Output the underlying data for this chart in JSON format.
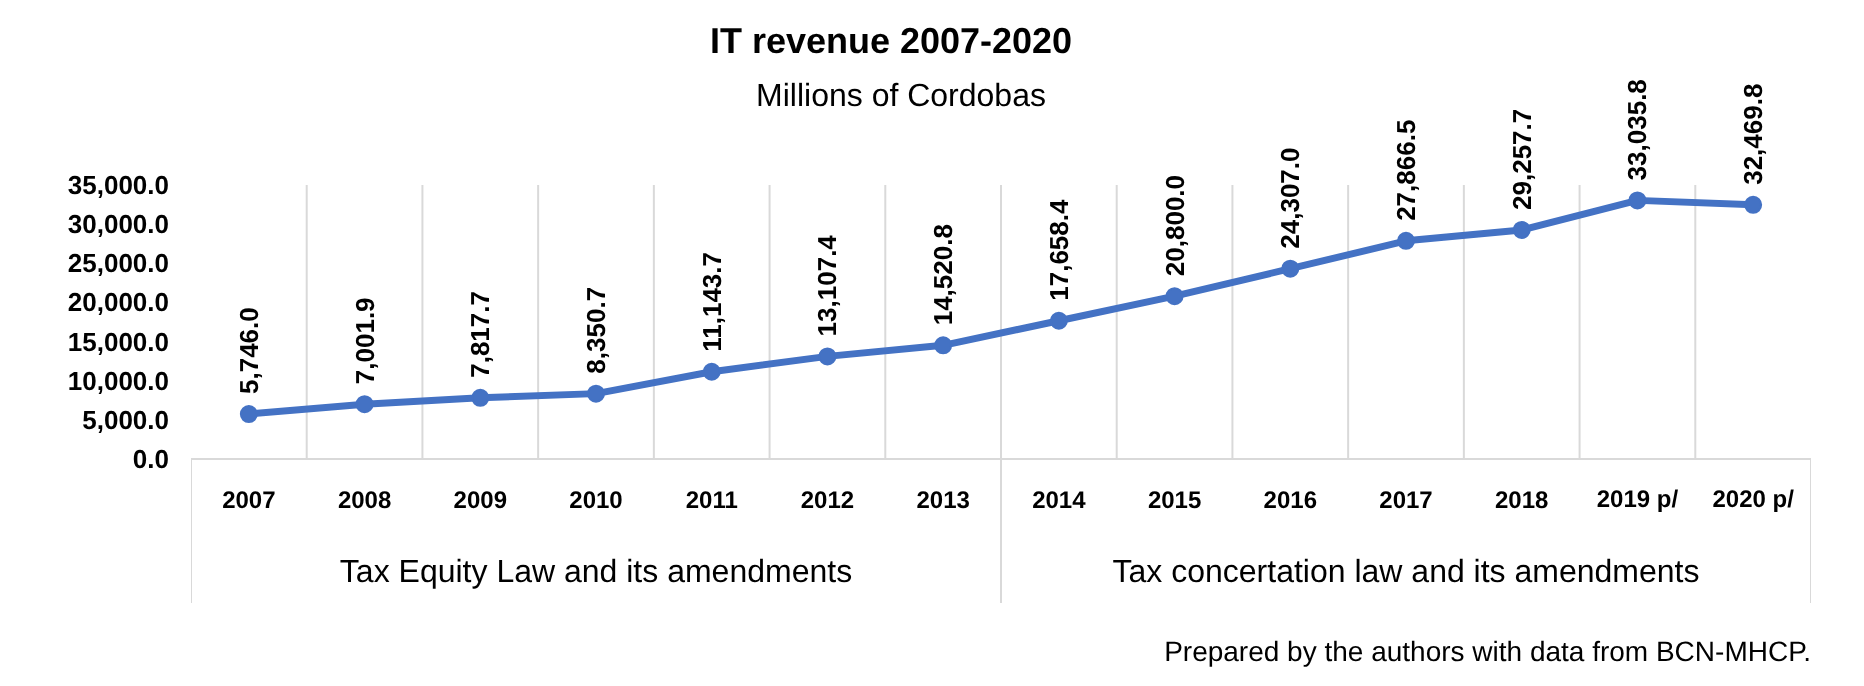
{
  "chart_data": {
    "type": "line",
    "title": "IT revenue 2007-2020",
    "subtitle": "Millions of Cordobas",
    "categories": [
      "2007",
      "2008",
      "2009",
      "2010",
      "2011",
      "2012",
      "2013",
      "2014",
      "2015",
      "2016",
      "2017",
      "2018",
      "2019 p/",
      "2020 p/"
    ],
    "series": [
      {
        "color": "#4472c4",
        "values": [
          5746.0,
          7001.9,
          7817.7,
          8350.7,
          11143.7,
          13107.4,
          14520.8,
          17658.4,
          20800.0,
          24307.0,
          27866.5,
          29257.7,
          33035.8,
          32469.8
        ]
      }
    ],
    "value_labels": [
      "5,746.0",
      "7,001.9",
      "7,817.7",
      "8,350.7",
      "11,143.7",
      "13,107.4",
      "14,520.8",
      "17,658.4",
      "20,800.0",
      "24,307.0",
      "27,866.5",
      "29,257.7",
      "33,035.8",
      "32,469.8"
    ],
    "ylim": [
      0,
      35000
    ],
    "yticks": [
      {
        "value": 0,
        "label": "0.0"
      },
      {
        "value": 5000,
        "label": "5,000.0"
      },
      {
        "value": 10000,
        "label": "10,000.0"
      },
      {
        "value": 15000,
        "label": "15,000.0"
      },
      {
        "value": 20000,
        "label": "20,000.0"
      },
      {
        "value": 25000,
        "label": "25,000.0"
      },
      {
        "value": 30000,
        "label": "30,000.0"
      },
      {
        "value": 35000,
        "label": "35,000.0"
      }
    ],
    "annotations": [
      "Tax Equity Law and its amendments",
      "Tax concertation law and its amendments",
      "Prepared by the authors with data from BCN-MHCP."
    ],
    "grid": "x",
    "marker": "circle",
    "line_style": "solid"
  }
}
